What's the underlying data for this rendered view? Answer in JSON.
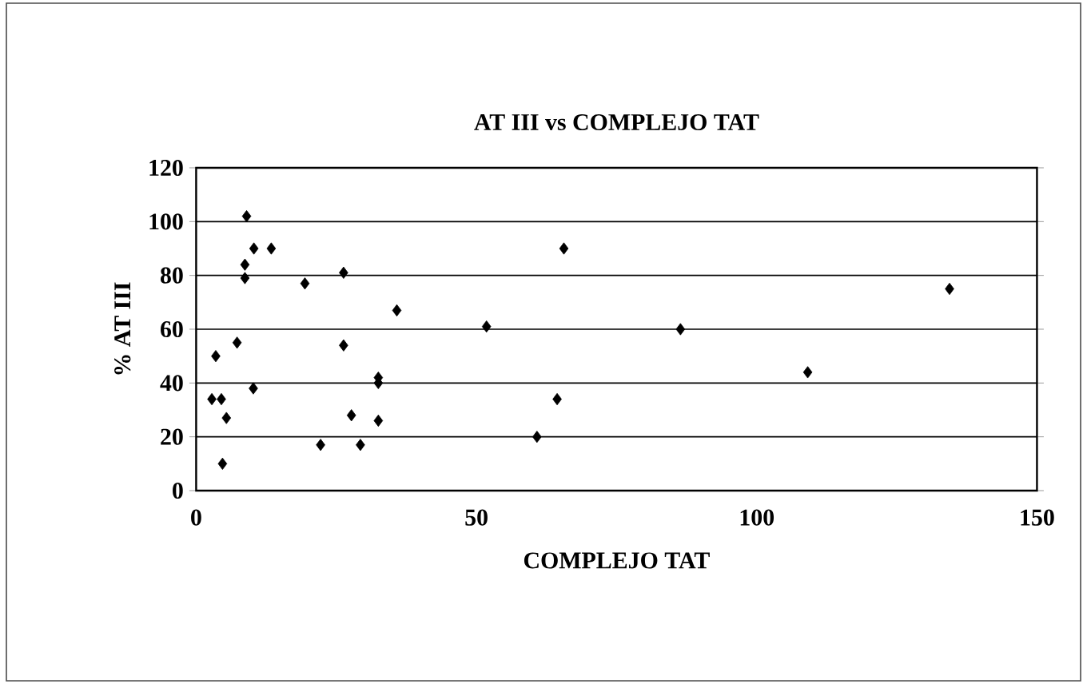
{
  "chart_data": {
    "type": "scatter",
    "title": "AT III vs COMPLEJO TAT",
    "xlabel": "COMPLEJO TAT",
    "ylabel": "% AT III",
    "x": [
      9,
      10.3,
      13.4,
      8.7,
      8.7,
      19.4,
      26.3,
      35.8,
      51.8,
      65.6,
      3.5,
      7.3,
      26.3,
      10.2,
      2.8,
      4.5,
      5.4,
      32.5,
      32.5,
      27.7,
      32.5,
      22.2,
      29.3,
      4.7,
      60.8,
      64.4,
      86.4,
      109.1,
      134.4
    ],
    "values": [
      102,
      90,
      90,
      84,
      79,
      77,
      81,
      67,
      61,
      90,
      50,
      55,
      54,
      38,
      34,
      34,
      27,
      42,
      40,
      28,
      26,
      17,
      17,
      10,
      20,
      34,
      60,
      44,
      75
    ],
    "color": "#000000",
    "marker": "diamond",
    "grid": "y",
    "xlim": [
      0,
      150
    ],
    "xticks": [
      0,
      50,
      100,
      150
    ],
    "ylim": [
      0,
      120
    ],
    "yticks": [
      0,
      20,
      40,
      60,
      80,
      100,
      120
    ]
  }
}
